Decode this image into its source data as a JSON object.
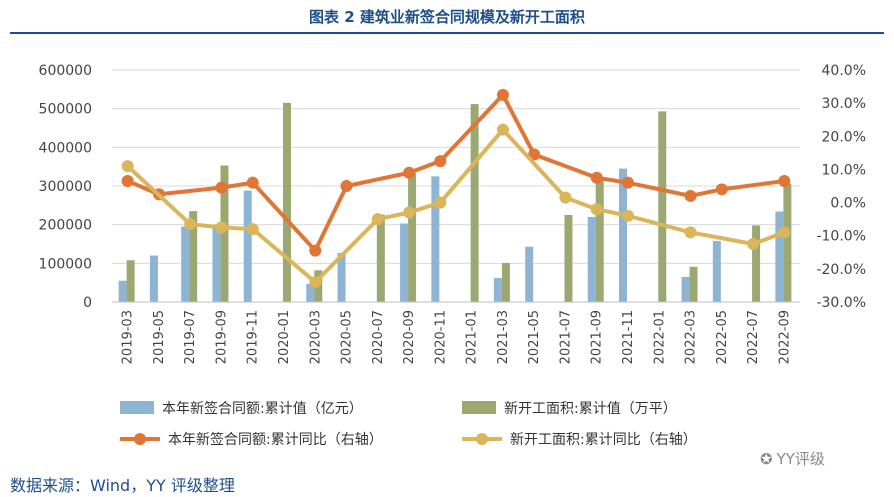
{
  "title": "图表 2 建筑业新签合同规模及新开工面积",
  "source": "数据来源：Wind，YY 评级整理",
  "watermark": "YY评级",
  "chart_data": {
    "type": "bar+line",
    "categories": [
      "2019-03",
      "2019-05",
      "2019-07",
      "2019-09",
      "2019-11",
      "2020-01",
      "2020-03",
      "2020-05",
      "2020-07",
      "2020-09",
      "2020-11",
      "2021-01",
      "2021-03",
      "2021-05",
      "2021-07",
      "2021-09",
      "2021-11",
      "2022-01",
      "2022-03",
      "2022-05",
      "2022-07",
      "2022-09"
    ],
    "ylim_left": [
      0,
      600000
    ],
    "left_ticks": [
      "0",
      "100000",
      "200000",
      "300000",
      "400000",
      "500000",
      "600000"
    ],
    "ylim_right": [
      -30,
      40
    ],
    "right_ticks": [
      "-30.0%",
      "-20.0%",
      "-10.0%",
      "0.0%",
      "10.0%",
      "20.0%",
      "30.0%",
      "40.0%"
    ],
    "bar_series": [
      {
        "name": "本年新签合同额:累计值（亿元）",
        "color": "#8eb4d4",
        "values": [
          55000,
          120000,
          195000,
          200000,
          288000,
          null,
          47000,
          127000,
          null,
          203000,
          325000,
          null,
          62000,
          143000,
          null,
          220000,
          345000,
          null,
          65000,
          158000,
          null,
          234000
        ]
      },
      {
        "name": "新开工面积:累计值（万平）",
        "color": "#9ca872",
        "values": [
          108000,
          null,
          235000,
          353000,
          null,
          515000,
          82000,
          null,
          226000,
          333000,
          null,
          512000,
          101000,
          null,
          225000,
          320000,
          null,
          493000,
          91000,
          null,
          198000,
          305000
        ]
      }
    ],
    "line_series": [
      {
        "name": "本年新签合同额:累计同比（右轴）",
        "color": "#e07535",
        "values": [
          6.5,
          2.5,
          null,
          4.5,
          6.0,
          null,
          -14.5,
          5.0,
          null,
          9.0,
          12.5,
          null,
          32.5,
          14.5,
          null,
          7.5,
          6.0,
          null,
          2.0,
          4.0,
          null,
          6.5
        ]
      },
      {
        "name": "新开工面积:累计同比（右轴）",
        "color": "#dbb55a",
        "values": [
          11.0,
          null,
          -6.5,
          -7.5,
          -8.0,
          null,
          -24.0,
          null,
          -5.0,
          -3.0,
          0.0,
          null,
          22.0,
          null,
          1.5,
          -2.0,
          -4.0,
          null,
          -9.0,
          null,
          -12.5,
          -9.0
        ]
      }
    ]
  }
}
